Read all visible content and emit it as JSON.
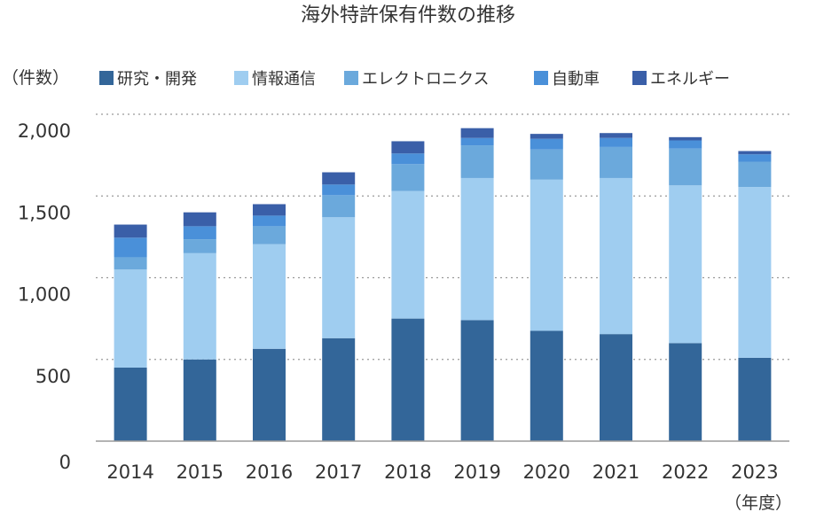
{
  "chart_data": {
    "type": "bar",
    "stacked": true,
    "title": "海外特許保有件数の推移",
    "ylabel": "（件数）",
    "xlabel": "（年度）",
    "ylim": [
      0,
      2000
    ],
    "yticks": [
      "0",
      "500",
      "1,000",
      "1,500",
      "2,000"
    ],
    "ytick_values": [
      0,
      500,
      1000,
      1500,
      2000
    ],
    "grid": true,
    "legend_position": "top",
    "categories": [
      "2014",
      "2015",
      "2016",
      "2017",
      "2018",
      "2019",
      "2020",
      "2021",
      "2022",
      "2023"
    ],
    "series": [
      {
        "name": "研究・開発",
        "color": "#336699",
        "values": [
          450,
          500,
          565,
          630,
          750,
          740,
          675,
          655,
          600,
          510
        ]
      },
      {
        "name": "情報通信",
        "color": "#9fcdf0",
        "values": [
          600,
          650,
          640,
          740,
          780,
          870,
          925,
          955,
          965,
          1045
        ]
      },
      {
        "name": "エレクトロニクス",
        "color": "#6ba9dc",
        "values": [
          75,
          85,
          110,
          135,
          165,
          200,
          185,
          190,
          225,
          155
        ]
      },
      {
        "name": "自動車",
        "color": "#4a90d9",
        "values": [
          120,
          80,
          65,
          65,
          65,
          45,
          65,
          55,
          50,
          45
        ]
      },
      {
        "name": "エネルギー",
        "color": "#3a5fa8",
        "values": [
          80,
          85,
          70,
          75,
          75,
          60,
          30,
          30,
          20,
          20
        ]
      }
    ]
  }
}
